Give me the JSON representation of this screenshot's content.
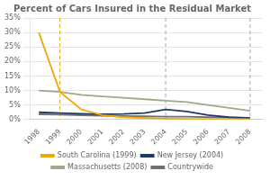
{
  "chart_data": {
    "type": "line",
    "title": "Percent of Cars Insured in the Residual Market",
    "x": [
      1998,
      1999,
      2000,
      2001,
      2002,
      2003,
      2004,
      2005,
      2006,
      2007,
      2008
    ],
    "series": [
      {
        "name": "South Carolina (1999)",
        "color": "#F0A800",
        "values": [
          30.0,
          9.5,
          3.5,
          1.5,
          0.8,
          0.5,
          0.3,
          0.2,
          0.15,
          0.1,
          0.1
        ]
      },
      {
        "name": "New Jersey (2004)",
        "color": "#1F3864",
        "values": [
          2.5,
          2.2,
          2.0,
          1.8,
          1.9,
          2.2,
          3.5,
          2.8,
          1.5,
          0.8,
          0.5
        ]
      },
      {
        "name": "Massachusetts (2008)",
        "color": "#9AAB8A",
        "values": [
          10.0,
          9.5,
          8.5,
          8.0,
          7.5,
          7.0,
          6.5,
          6.0,
          5.0,
          4.0,
          3.0
        ]
      },
      {
        "name": "Countrywide",
        "color": "#707070",
        "values": [
          1.8,
          1.7,
          1.5,
          1.3,
          1.2,
          1.1,
          1.0,
          1.0,
          0.8,
          0.7,
          0.6
        ]
      }
    ],
    "vlines": [
      {
        "x": 1999,
        "color": "#F0A800",
        "line_style": "dashed"
      },
      {
        "x": 2004,
        "color": "#9AAABB",
        "line_style": "dashed"
      },
      {
        "x": 2008,
        "color": "#9AAABB",
        "line_style": "dashed"
      }
    ],
    "xlim": [
      1997.6,
      2008.6
    ],
    "xticks": [
      1998,
      1999,
      2000,
      2001,
      2002,
      2003,
      2004,
      2005,
      2006,
      2007,
      2008
    ],
    "ylim": [
      0,
      35
    ],
    "yticks": [
      {
        "value": 0,
        "label": "0%"
      },
      {
        "value": 5,
        "label": "5%"
      },
      {
        "value": 10,
        "label": "10%"
      },
      {
        "value": 15,
        "label": "15%"
      },
      {
        "value": 20,
        "label": "20%"
      },
      {
        "value": 25,
        "label": "25%"
      },
      {
        "value": 30,
        "label": "30%"
      },
      {
        "value": 35,
        "label": "35%"
      }
    ],
    "grid": "y",
    "legend": "bottom"
  }
}
